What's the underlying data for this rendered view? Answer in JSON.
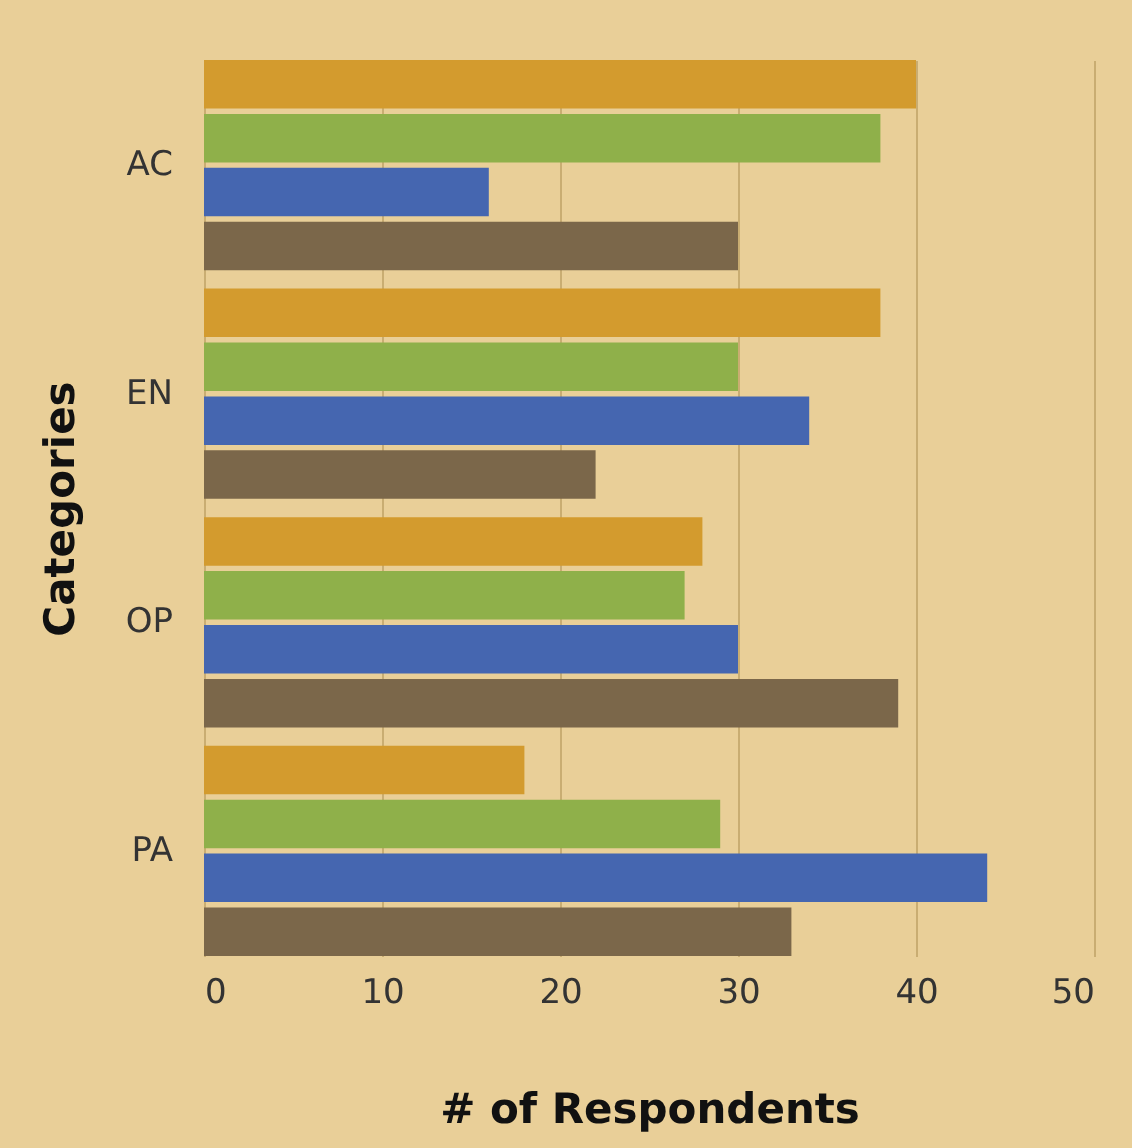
{
  "chart_data": {
    "type": "bar",
    "orientation": "horizontal",
    "xlabel": "# of Respondents",
    "ylabel": "Categories",
    "categories": [
      "AC",
      "EN",
      "OP",
      "PA"
    ],
    "series": [
      {
        "color": "#d39b2e",
        "values": [
          40,
          38,
          28,
          18
        ]
      },
      {
        "color": "#8fb04a",
        "values": [
          38,
          30,
          27,
          29
        ]
      },
      {
        "color": "#4566b0",
        "values": [
          16,
          34,
          30,
          44
        ]
      },
      {
        "color": "#7b674a",
        "values": [
          30,
          22,
          39,
          33
        ]
      }
    ],
    "xlim": [
      0,
      50
    ],
    "xticks": [
      0,
      10,
      20,
      30,
      40,
      50
    ],
    "grid": "x",
    "legend": false
  }
}
